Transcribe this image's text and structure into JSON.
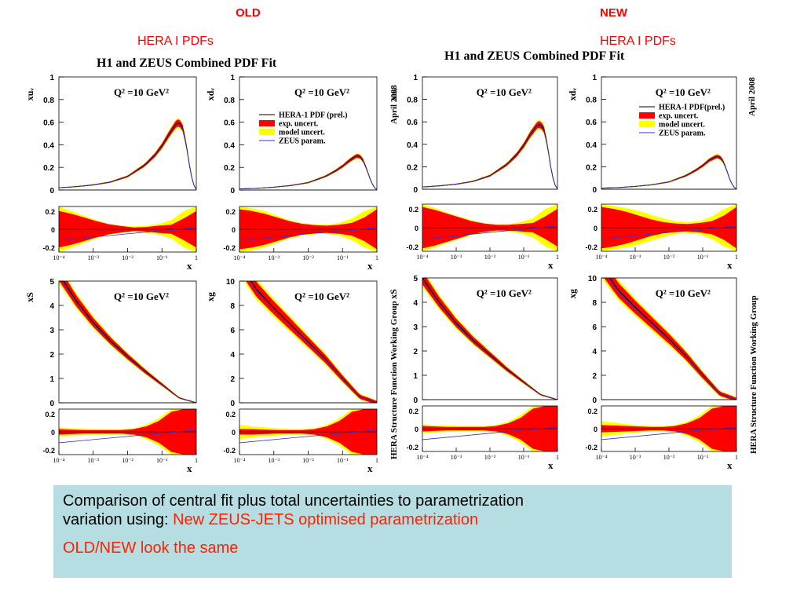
{
  "header": {
    "old_label": "OLD",
    "new_label": "NEW",
    "old_sub": "HERA I  PDFs",
    "new_sub": "HERA I  PDFs"
  },
  "figures": {
    "old_title": "H1 and ZEUS Combined PDF Fit",
    "new_title": "H1 and ZEUS Combined PDF Fit",
    "side_date": "April 2008",
    "side_group": "HERA Structure Function Working Group"
  },
  "caption": {
    "line1": "Comparison of central fit plus total uncertainties to parametrization",
    "line2_prefix": "variation using: ",
    "line2_highlight": "New ZEUS-JETS optimised parametrization",
    "line3": "OLD/NEW look the same"
  },
  "colors": {
    "exp_uncert": "#ff0000",
    "model_uncert": "#ffff00",
    "central": "#000000",
    "zeus_param": "#3333cc",
    "caption_bg": "#b6dde1",
    "header_red": "#ff0000"
  },
  "chart_data": [
    {
      "id": "old",
      "type": "area",
      "legend": {
        "central": "HERA-1 PDF (prel.)",
        "exp": "exp. uncert.",
        "model": "model uncert.",
        "zeus": "ZEUS param."
      },
      "q2_label": "Q² =10 GeV²",
      "xlabel": "x",
      "x_tick_labels": [
        "10⁻⁴",
        "10⁻³",
        "10⁻²",
        "10⁻¹",
        "1"
      ],
      "ratio_ylim": [
        -0.25,
        0.25
      ],
      "ratio_ticks": [
        "0.2",
        "0",
        "-0.2"
      ],
      "panels": [
        {
          "name": "xuᵥ",
          "ylim": [
            0,
            1
          ],
          "y_ticks": [
            "1",
            "0.8",
            "0.6",
            "0.4",
            "0.2",
            "0"
          ],
          "x": [
            -4,
            -3.5,
            -3,
            -2.5,
            -2,
            -1.5,
            -1.2,
            -1,
            -0.8,
            -0.6,
            -0.5,
            -0.4,
            -0.3,
            -0.2,
            -0.1,
            0
          ],
          "y": [
            0.02,
            0.03,
            0.045,
            0.07,
            0.12,
            0.22,
            0.31,
            0.39,
            0.49,
            0.58,
            0.6,
            0.55,
            0.42,
            0.22,
            0.06,
            0.005
          ],
          "band": 0.03,
          "ratio_exp": [
            0.2,
            0.17,
            0.13,
            0.09,
            0.055,
            0.035,
            0.02,
            0.025,
            0.04,
            0.05,
            0.12,
            0.2
          ],
          "ratio_model": [
            0.25,
            0.2,
            0.15,
            0.1,
            0.06,
            0.04,
            0.03,
            0.04,
            0.06,
            0.1,
            0.2,
            0.25
          ]
        },
        {
          "name": "xdᵥ",
          "ylim": [
            0,
            1
          ],
          "y_ticks": [
            "1",
            "0.8",
            "0.6",
            "0.4",
            "0.2",
            "0"
          ],
          "x": [
            -4,
            -3.5,
            -3,
            -2.5,
            -2,
            -1.5,
            -1.2,
            -1,
            -0.8,
            -0.6,
            -0.5,
            -0.4,
            -0.3,
            -0.2,
            -0.1,
            0
          ],
          "y": [
            0.01,
            0.015,
            0.025,
            0.04,
            0.065,
            0.12,
            0.17,
            0.21,
            0.26,
            0.3,
            0.3,
            0.26,
            0.19,
            0.1,
            0.03,
            0.003
          ],
          "band": 0.03,
          "ratio_exp": [
            0.22,
            0.2,
            0.17,
            0.13,
            0.09,
            0.06,
            0.045,
            0.04,
            0.05,
            0.07,
            0.13,
            0.22
          ],
          "ratio_model": [
            0.25,
            0.23,
            0.2,
            0.15,
            0.1,
            0.07,
            0.055,
            0.05,
            0.07,
            0.12,
            0.2,
            0.25
          ]
        },
        {
          "name": "xS",
          "ylim": [
            0,
            5
          ],
          "y_ticks": [
            "5",
            "4",
            "3",
            "2",
            "1",
            "0"
          ],
          "x": [
            -4,
            -3.5,
            -3,
            -2.5,
            -2,
            -1.5,
            -1,
            -0.5,
            0
          ],
          "y": [
            5.3,
            4.2,
            3.3,
            2.55,
            1.9,
            1.3,
            0.75,
            0.2,
            0.0
          ],
          "band": 0.06,
          "ratio_exp": [
            0.03,
            0.025,
            0.02,
            0.02,
            0.02,
            0.02,
            0.03,
            0.06,
            0.12,
            0.22,
            0.25,
            0.25
          ],
          "ratio_model": [
            0.05,
            0.04,
            0.035,
            0.03,
            0.03,
            0.03,
            0.04,
            0.08,
            0.15,
            0.25,
            0.25,
            0.25
          ]
        },
        {
          "name": "xg",
          "ylim": [
            0,
            10
          ],
          "y_ticks": [
            "10",
            "8",
            "6",
            "4",
            "2",
            "0"
          ],
          "x": [
            -4,
            -3.5,
            -3,
            -2.5,
            -2,
            -1.5,
            -1,
            -0.5,
            0
          ],
          "y": [
            11.5,
            9.3,
            7.8,
            6.4,
            5.0,
            3.6,
            2.0,
            0.5,
            0.0
          ],
          "band": 0.25,
          "ratio_exp": [
            0.03,
            0.03,
            0.025,
            0.02,
            0.02,
            0.02,
            0.03,
            0.06,
            0.12,
            0.22,
            0.25,
            0.25
          ],
          "ratio_model": [
            0.08,
            0.06,
            0.05,
            0.04,
            0.03,
            0.03,
            0.04,
            0.08,
            0.15,
            0.25,
            0.25,
            0.25
          ]
        }
      ]
    },
    {
      "id": "new",
      "type": "area",
      "legend": {
        "central": "HERA-I PDF(prel.)",
        "exp": "exp. uncert.",
        "model": "model uncert.",
        "zeus": "ZEUS param."
      },
      "q2_label": "Q² =10 GeV²",
      "xlabel": "x",
      "x_tick_labels": [
        "10⁻⁴",
        "10⁻³",
        "10⁻²",
        "10⁻¹",
        "1"
      ],
      "ratio_ylim": [
        -0.25,
        0.25
      ],
      "ratio_ticks": [
        "0.2",
        "0",
        "-0.2"
      ],
      "panels": [
        {
          "name": "xuᵥ",
          "ylim": [
            0,
            1
          ],
          "y_ticks": [
            "1",
            "0.8",
            "0.6",
            "0.4",
            "0.2",
            "0"
          ],
          "x": [
            -4,
            -3.5,
            -3,
            -2.5,
            -2,
            -1.5,
            -1.2,
            -1,
            -0.8,
            -0.6,
            -0.5,
            -0.4,
            -0.3,
            -0.2,
            -0.1,
            0
          ],
          "y": [
            0.02,
            0.03,
            0.045,
            0.07,
            0.12,
            0.22,
            0.31,
            0.39,
            0.49,
            0.57,
            0.58,
            0.53,
            0.4,
            0.2,
            0.05,
            0.005
          ],
          "band": 0.03,
          "ratio_exp": [
            0.22,
            0.19,
            0.15,
            0.11,
            0.07,
            0.045,
            0.03,
            0.03,
            0.04,
            0.05,
            0.12,
            0.2
          ],
          "ratio_model": [
            0.25,
            0.21,
            0.16,
            0.12,
            0.08,
            0.05,
            0.035,
            0.04,
            0.06,
            0.1,
            0.2,
            0.25
          ]
        },
        {
          "name": "xdᵥ",
          "ylim": [
            0,
            1
          ],
          "y_ticks": [
            "1",
            "0.8",
            "0.6",
            "0.4",
            "0.2",
            "0"
          ],
          "x": [
            -4,
            -3.5,
            -3,
            -2.5,
            -2,
            -1.5,
            -1.2,
            -1,
            -0.8,
            -0.6,
            -0.5,
            -0.4,
            -0.3,
            -0.2,
            -0.1,
            0
          ],
          "y": [
            0.01,
            0.015,
            0.025,
            0.04,
            0.065,
            0.12,
            0.17,
            0.21,
            0.26,
            0.29,
            0.29,
            0.25,
            0.18,
            0.09,
            0.025,
            0.003
          ],
          "band": 0.03,
          "ratio_exp": [
            0.22,
            0.2,
            0.17,
            0.13,
            0.09,
            0.06,
            0.045,
            0.04,
            0.05,
            0.07,
            0.13,
            0.22
          ],
          "ratio_model": [
            0.25,
            0.23,
            0.21,
            0.18,
            0.14,
            0.1,
            0.07,
            0.06,
            0.07,
            0.12,
            0.2,
            0.25
          ]
        },
        {
          "name": "xS",
          "ylim": [
            0,
            5
          ],
          "y_ticks": [
            "5",
            "4",
            "3",
            "2",
            "1",
            "0"
          ],
          "x": [
            -4,
            -3.5,
            -3,
            -2.5,
            -2,
            -1.5,
            -1,
            -0.5,
            0
          ],
          "y": [
            5.0,
            4.0,
            3.15,
            2.45,
            1.85,
            1.25,
            0.72,
            0.2,
            0.0
          ],
          "band": 0.06,
          "ratio_exp": [
            0.03,
            0.025,
            0.02,
            0.02,
            0.02,
            0.02,
            0.03,
            0.06,
            0.12,
            0.22,
            0.25,
            0.25
          ],
          "ratio_model": [
            0.05,
            0.04,
            0.035,
            0.03,
            0.03,
            0.03,
            0.04,
            0.08,
            0.15,
            0.25,
            0.25,
            0.25
          ]
        },
        {
          "name": "xg",
          "ylim": [
            0,
            10
          ],
          "y_ticks": [
            "10",
            "8",
            "6",
            "4",
            "2",
            "0"
          ],
          "x": [
            -4,
            -3.5,
            -3,
            -2.5,
            -2,
            -1.5,
            -1,
            -0.5,
            0
          ],
          "y": [
            11.0,
            9.0,
            7.6,
            6.3,
            5.0,
            3.6,
            2.0,
            0.5,
            0.0
          ],
          "band": 0.25,
          "ratio_exp": [
            0.04,
            0.035,
            0.03,
            0.025,
            0.02,
            0.02,
            0.03,
            0.06,
            0.12,
            0.22,
            0.25,
            0.25
          ],
          "ratio_model": [
            0.08,
            0.07,
            0.05,
            0.04,
            0.03,
            0.03,
            0.04,
            0.08,
            0.15,
            0.25,
            0.25,
            0.25
          ]
        }
      ]
    }
  ]
}
